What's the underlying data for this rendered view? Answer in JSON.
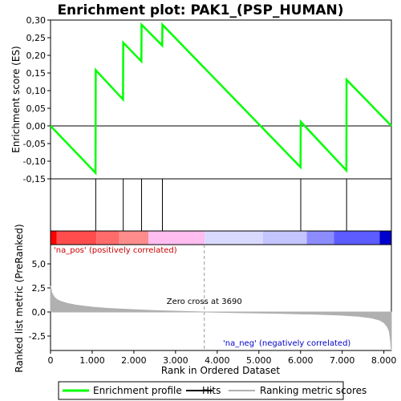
{
  "chart_data": {
    "type": "line",
    "title": "Enrichment plot: PAK1_(PSP_HUMAN)",
    "xlabel": "Rank in Ordered Dataset",
    "es_panel": {
      "ylabel": "Enrichment score (ES)",
      "ylim": [
        -0.15,
        0.3
      ],
      "yticks": [
        -0.15,
        -0.1,
        -0.05,
        0.0,
        0.05,
        0.1,
        0.15,
        0.2,
        0.25,
        0.3
      ],
      "ytick_labels": [
        "-0,15",
        "-0,10",
        "-0,05",
        "0,00",
        "0,05",
        "0,10",
        "0,15",
        "0,20",
        "0,25",
        "0,30"
      ],
      "series": [
        {
          "name": "Enrichment profile",
          "color": "#00ff00",
          "x": [
            0,
            1080,
            1085,
            1740,
            1745,
            2180,
            2185,
            2680,
            2685,
            6000,
            6005,
            7100,
            7105,
            8180
          ],
          "y": [
            0.0,
            -0.133,
            0.158,
            0.075,
            0.236,
            0.183,
            0.287,
            0.228,
            0.287,
            -0.117,
            0.012,
            -0.126,
            0.131,
            0.0
          ]
        }
      ]
    },
    "hits": {
      "name": "Hits",
      "color": "#000000",
      "positions": [
        1085,
        1745,
        2185,
        2685,
        6005,
        7105
      ]
    },
    "heatmap_bar": {
      "segments": [
        {
          "from": 0,
          "to": 150,
          "color": "#ff0000"
        },
        {
          "from": 150,
          "to": 1100,
          "color": "#ff4d4d"
        },
        {
          "from": 1100,
          "to": 1650,
          "color": "#ff6b6b"
        },
        {
          "from": 1650,
          "to": 2350,
          "color": "#ff8c8c"
        },
        {
          "from": 2350,
          "to": 3700,
          "color": "#ffbdf0"
        },
        {
          "from": 3700,
          "to": 5100,
          "color": "#d9d9ff"
        },
        {
          "from": 5100,
          "to": 6150,
          "color": "#c4c4ff"
        },
        {
          "from": 6150,
          "to": 6800,
          "color": "#8c8cff"
        },
        {
          "from": 6800,
          "to": 7900,
          "color": "#5c5cff"
        },
        {
          "from": 7900,
          "to": 8180,
          "color": "#0000cc"
        }
      ]
    },
    "metric_panel": {
      "ylabel": "Ranked list metric (PreRanked)",
      "ylim": [
        -4.0,
        7.0
      ],
      "yticks": [
        -2.5,
        0.0,
        2.5,
        5.0
      ],
      "ytick_labels": [
        "-2,5",
        "0,0",
        "2,5",
        "5,0"
      ],
      "series": [
        {
          "name": "Ranking metric scores",
          "color": "#b0b0b0",
          "x": [
            0,
            30,
            80,
            150,
            250,
            400,
            600,
            800,
            1000,
            1300,
            1600,
            2000,
            2500,
            3000,
            3690,
            4500,
            5500,
            6500,
            7000,
            7400,
            7700,
            7900,
            8000,
            8080,
            8130,
            8160,
            8180
          ],
          "y": [
            2.7,
            2.0,
            1.6,
            1.3,
            1.1,
            0.9,
            0.72,
            0.6,
            0.5,
            0.4,
            0.32,
            0.24,
            0.15,
            0.08,
            0.0,
            -0.07,
            -0.15,
            -0.25,
            -0.33,
            -0.45,
            -0.62,
            -0.85,
            -1.1,
            -1.5,
            -2.0,
            -3.0,
            -4.0
          ]
        }
      ],
      "zero_cross_label": "Zero cross at 3690",
      "zero_cross_x": 3690,
      "pos_label": "'na_pos' (positively correlated)",
      "neg_label": "'na_neg' (negatively correlated)",
      "pos_color": "#cc0000",
      "neg_color": "#0000cc"
    },
    "xlim": [
      0,
      8180
    ],
    "xticks": [
      0,
      1000,
      2000,
      3000,
      4000,
      5000,
      6000,
      7000,
      8000
    ],
    "xtick_labels": [
      "0",
      "1.000",
      "2.000",
      "3.000",
      "4.000",
      "5.000",
      "6.000",
      "7.000",
      "8.000"
    ],
    "legend": {
      "placement": "bottom",
      "items": [
        {
          "label": "Enrichment profile",
          "color": "#00ff00"
        },
        {
          "label": "Hits",
          "color": "#000000"
        },
        {
          "label": "Ranking metric scores",
          "color": "#b0b0b0"
        }
      ]
    }
  }
}
